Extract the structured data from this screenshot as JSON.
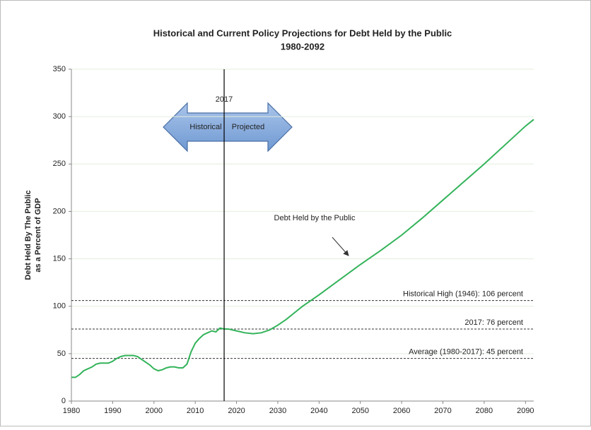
{
  "chart_data": {
    "type": "line",
    "title": "Historical and Current Policy Projections for Debt Held by the Public",
    "subtitle": "1980-2092",
    "ylabel": [
      "Debt Held By The Public",
      "as a Percent of GDP"
    ],
    "x": [
      1980,
      1981,
      1982,
      1983,
      1984,
      1985,
      1986,
      1987,
      1988,
      1989,
      1990,
      1991,
      1992,
      1993,
      1994,
      1995,
      1996,
      1997,
      1998,
      1999,
      2000,
      2001,
      2002,
      2003,
      2004,
      2005,
      2006,
      2007,
      2008,
      2009,
      2010,
      2011,
      2012,
      2013,
      2014,
      2015,
      2016,
      2017,
      2018,
      2020,
      2022,
      2024,
      2026,
      2028,
      2030,
      2032,
      2034,
      2036,
      2038,
      2040,
      2045,
      2050,
      2055,
      2060,
      2065,
      2070,
      2075,
      2080,
      2085,
      2090,
      2092
    ],
    "series": [
      {
        "name": "Debt Held by the Public",
        "color": "#33b35a",
        "values": [
          25,
          25,
          28,
          32,
          34,
          36,
          39,
          40,
          40,
          40,
          42,
          45,
          47,
          48,
          48,
          48,
          47,
          44,
          41,
          38,
          34,
          32,
          33,
          35,
          36,
          36,
          35,
          35,
          39,
          52,
          61,
          66,
          70,
          72,
          74,
          73,
          77,
          76,
          76,
          74,
          72,
          71,
          72,
          75,
          80,
          86,
          93,
          100,
          106,
          112,
          128,
          144,
          159,
          175,
          193,
          212,
          231,
          250,
          270,
          290,
          297
        ]
      }
    ],
    "xlim": [
      1980,
      2092
    ],
    "xticks": [
      1980,
      1990,
      2000,
      2010,
      2020,
      2030,
      2040,
      2050,
      2060,
      2070,
      2080,
      2090
    ],
    "ylim": [
      0,
      350
    ],
    "yticks": [
      0,
      50,
      100,
      150,
      200,
      250,
      300,
      350
    ],
    "grid": true,
    "grid_color": "#e3eedd",
    "reference_lines": [
      {
        "value": 106,
        "label": "Historical High (1946): 106 percent"
      },
      {
        "value": 76,
        "label": "2017: 76 percent"
      },
      {
        "value": 45,
        "label": "Average (1980-2017): 45 percent"
      }
    ],
    "vertical_marker": {
      "value": 2017,
      "label": "2017"
    },
    "arrow_labels": [
      "Historical",
      "Projected"
    ]
  }
}
